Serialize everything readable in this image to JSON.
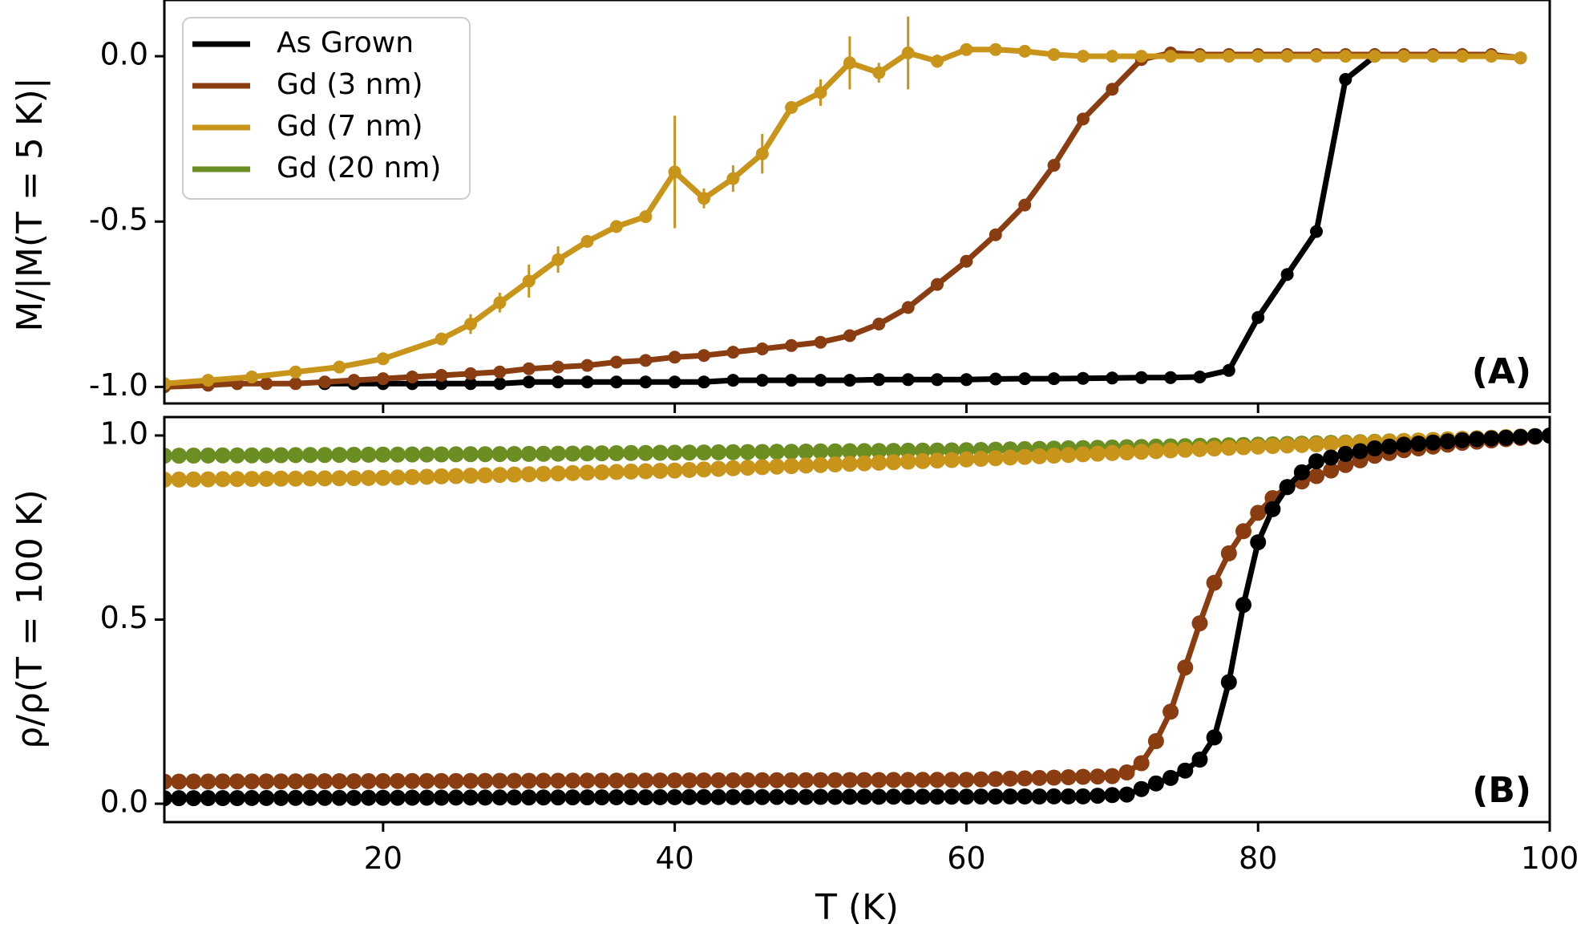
{
  "chart_data": [
    {
      "type": "line",
      "panel_label": "(A)",
      "ylabel": "M/|M(T = 5 K)|",
      "xlim": [
        5,
        100
      ],
      "ylim": [
        -1.05,
        0.17
      ],
      "yticks": [
        {
          "value": 0.0,
          "label": "0.0"
        },
        {
          "value": -0.5,
          "label": "-0.5"
        },
        {
          "value": -1.0,
          "label": "-1.0"
        }
      ],
      "xticks": [
        20,
        40,
        60,
        80,
        100
      ],
      "legend": {
        "placement": "top-left",
        "entries": [
          "As Grown",
          "Gd (3 nm)",
          "Gd (7 nm)",
          "Gd (20 nm)"
        ]
      },
      "series": [
        {
          "name": "As Grown",
          "color": "#000000",
          "x": [
            16,
            18,
            20,
            22,
            24,
            26,
            28,
            30,
            32,
            34,
            36,
            38,
            40,
            42,
            44,
            46,
            48,
            50,
            52,
            54,
            56,
            58,
            60,
            62,
            64,
            66,
            68,
            70,
            72,
            74,
            76,
            78,
            80,
            82,
            84,
            86,
            88
          ],
          "y": [
            -0.99,
            -0.99,
            -0.99,
            -0.99,
            -0.99,
            -0.99,
            -0.99,
            -0.985,
            -0.985,
            -0.985,
            -0.985,
            -0.985,
            -0.985,
            -0.985,
            -0.98,
            -0.98,
            -0.98,
            -0.98,
            -0.98,
            -0.978,
            -0.978,
            -0.978,
            -0.978,
            -0.976,
            -0.975,
            -0.975,
            -0.974,
            -0.973,
            -0.972,
            -0.972,
            -0.97,
            -0.95,
            -0.79,
            -0.66,
            -0.53,
            -0.07,
            0.0
          ]
        },
        {
          "name": "Gd (3 nm)",
          "color": "#8B3D12",
          "x": [
            5,
            8,
            10,
            12,
            14,
            16,
            18,
            20,
            22,
            24,
            26,
            28,
            30,
            32,
            34,
            36,
            38,
            40,
            42,
            44,
            46,
            48,
            50,
            52,
            54,
            56,
            58,
            60,
            62,
            64,
            66,
            68,
            70,
            72,
            74,
            76,
            78,
            80,
            82,
            84,
            86,
            88,
            90,
            92,
            94,
            96,
            98
          ],
          "y": [
            -1.0,
            -0.995,
            -0.99,
            -0.99,
            -0.99,
            -0.985,
            -0.98,
            -0.975,
            -0.97,
            -0.965,
            -0.96,
            -0.955,
            -0.945,
            -0.94,
            -0.935,
            -0.925,
            -0.92,
            -0.91,
            -0.905,
            -0.895,
            -0.885,
            -0.875,
            -0.865,
            -0.845,
            -0.81,
            -0.76,
            -0.69,
            -0.62,
            -0.54,
            -0.45,
            -0.33,
            -0.19,
            -0.1,
            -0.01,
            0.01,
            0.005,
            0.005,
            0.005,
            0.005,
            0.005,
            0.005,
            0.005,
            0.005,
            0.005,
            0.005,
            0.005,
            -0.005
          ]
        },
        {
          "name": "Gd (7 nm)",
          "color": "#C8941A",
          "x": [
            5,
            8,
            11,
            14,
            17,
            20,
            24,
            26,
            28,
            30,
            32,
            34,
            36,
            38,
            40,
            42,
            44,
            46,
            48,
            50,
            52,
            54,
            56,
            58,
            60,
            62,
            64,
            66,
            68,
            70,
            72,
            74,
            76,
            78,
            80,
            82,
            84,
            86,
            88,
            90,
            92,
            94,
            96,
            98
          ],
          "y": [
            -0.99,
            -0.98,
            -0.97,
            -0.955,
            -0.94,
            -0.915,
            -0.855,
            -0.81,
            -0.745,
            -0.68,
            -0.615,
            -0.56,
            -0.515,
            -0.485,
            -0.35,
            -0.43,
            -0.37,
            -0.295,
            -0.155,
            -0.11,
            -0.02,
            -0.05,
            0.01,
            -0.015,
            0.02,
            0.02,
            0.015,
            0.005,
            0.0,
            0.0,
            0.0,
            0.0,
            0.0,
            0.0,
            0.0,
            0.0,
            0.0,
            0.0,
            0.0,
            0.0,
            0.0,
            0.0,
            0.0,
            -0.005
          ],
          "error_bars": [
            {
              "x": 26,
              "err": 0.03
            },
            {
              "x": 28,
              "err": 0.03
            },
            {
              "x": 30,
              "err": 0.05
            },
            {
              "x": 32,
              "err": 0.04
            },
            {
              "x": 40,
              "err": 0.17
            },
            {
              "x": 42,
              "err": 0.03
            },
            {
              "x": 44,
              "err": 0.04
            },
            {
              "x": 46,
              "err": 0.06
            },
            {
              "x": 50,
              "err": 0.04
            },
            {
              "x": 52,
              "err": 0.08
            },
            {
              "x": 54,
              "err": 0.03
            },
            {
              "x": 56,
              "err": 0.11
            },
            {
              "x": 58,
              "err": 0.02
            }
          ]
        },
        {
          "name": "Gd (20 nm)",
          "color": "#6B8E23",
          "x": [],
          "y": []
        }
      ]
    },
    {
      "type": "scatter-line",
      "panel_label": "(B)",
      "ylabel": "ρ/ρ(T = 100 K)",
      "xlabel": "T (K)",
      "xlim": [
        5,
        100
      ],
      "ylim": [
        -0.05,
        1.05
      ],
      "yticks": [
        {
          "value": 0.0,
          "label": "0.0"
        },
        {
          "value": 0.5,
          "label": "0.5"
        },
        {
          "value": 1.0,
          "label": "1.0"
        }
      ],
      "xticks": [
        20,
        40,
        60,
        80,
        100
      ],
      "series": [
        {
          "name": "Gd (20 nm)",
          "color": "#6B8E23",
          "x_range": [
            5,
            100
          ],
          "x_step": 1,
          "y_points": [
            [
              5,
              0.945
            ],
            [
              30,
              0.95
            ],
            [
              60,
              0.96
            ],
            [
              80,
              0.975
            ],
            [
              90,
              0.985
            ],
            [
              100,
              1.0
            ]
          ]
        },
        {
          "name": "Gd (7 nm)",
          "color": "#C8941A",
          "x_range": [
            5,
            100
          ],
          "x_step": 1,
          "y_points": [
            [
              5,
              0.88
            ],
            [
              20,
              0.885
            ],
            [
              40,
              0.905
            ],
            [
              60,
              0.935
            ],
            [
              80,
              0.97
            ],
            [
              90,
              0.985
            ],
            [
              100,
              1.0
            ]
          ]
        },
        {
          "name": "Gd (3 nm)",
          "color": "#8B3D12",
          "x_range": [
            5,
            100
          ],
          "x_step": 1,
          "y_points": [
            [
              5,
              0.06
            ],
            [
              60,
              0.065
            ],
            [
              70,
              0.075
            ],
            [
              71,
              0.085
            ],
            [
              72,
              0.11
            ],
            [
              73,
              0.17
            ],
            [
              74,
              0.25
            ],
            [
              75,
              0.37
            ],
            [
              76,
              0.49
            ],
            [
              77,
              0.6
            ],
            [
              78,
              0.68
            ],
            [
              79,
              0.74
            ],
            [
              80,
              0.79
            ],
            [
              81,
              0.83
            ],
            [
              82,
              0.86
            ],
            [
              84,
              0.89
            ],
            [
              86,
              0.92
            ],
            [
              88,
              0.945
            ],
            [
              90,
              0.96
            ],
            [
              94,
              0.98
            ],
            [
              100,
              1.0
            ]
          ]
        },
        {
          "name": "As Grown",
          "color": "#000000",
          "x_range": [
            5,
            100
          ],
          "x_step": 1,
          "y_points": [
            [
              5,
              0.015
            ],
            [
              68,
              0.02
            ],
            [
              71,
              0.025
            ],
            [
              72,
              0.04
            ],
            [
              73,
              0.055
            ],
            [
              74,
              0.07
            ],
            [
              75,
              0.09
            ],
            [
              76,
              0.12
            ],
            [
              77,
              0.18
            ],
            [
              78,
              0.33
            ],
            [
              79,
              0.54
            ],
            [
              80,
              0.71
            ],
            [
              81,
              0.8
            ],
            [
              82,
              0.86
            ],
            [
              83,
              0.9
            ],
            [
              84,
              0.93
            ],
            [
              86,
              0.95
            ],
            [
              88,
              0.965
            ],
            [
              90,
              0.975
            ],
            [
              95,
              0.99
            ],
            [
              100,
              1.0
            ]
          ]
        }
      ]
    }
  ]
}
